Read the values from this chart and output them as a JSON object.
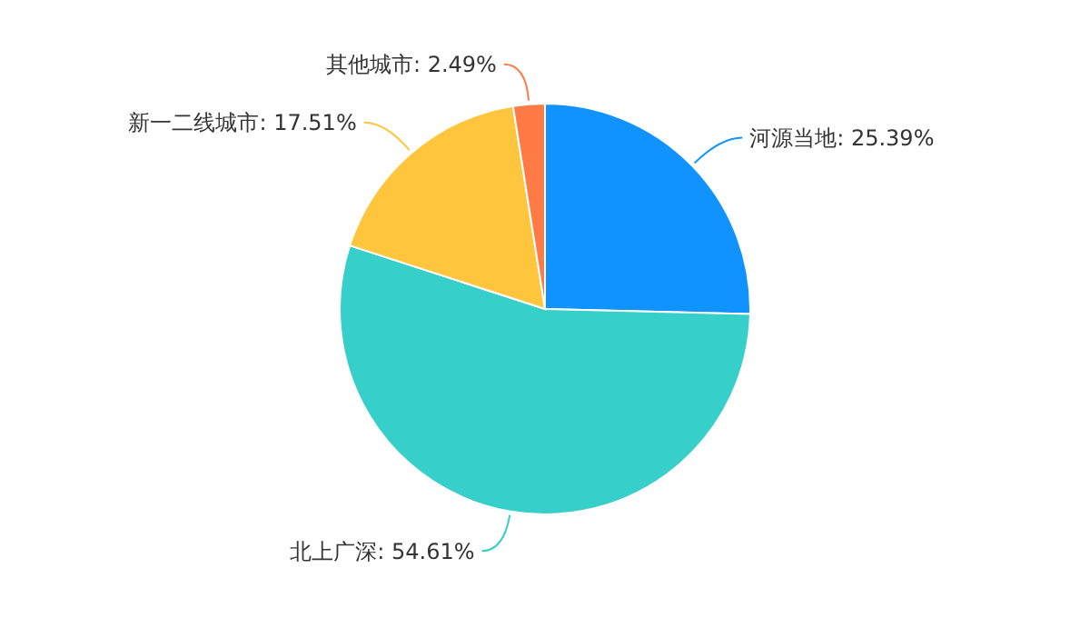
{
  "chart_data": {
    "type": "pie",
    "categories": [
      "河源当地",
      "北上广深",
      "新一二线城市",
      "其他城市"
    ],
    "values": [
      25.39,
      54.61,
      17.51,
      2.49
    ],
    "value_labels": [
      "25.39%",
      "54.61%",
      "17.51%",
      "2.49%"
    ],
    "colors": [
      "#1193ff",
      "#36cfc9",
      "#ffc53d",
      "#ff7a45"
    ]
  }
}
